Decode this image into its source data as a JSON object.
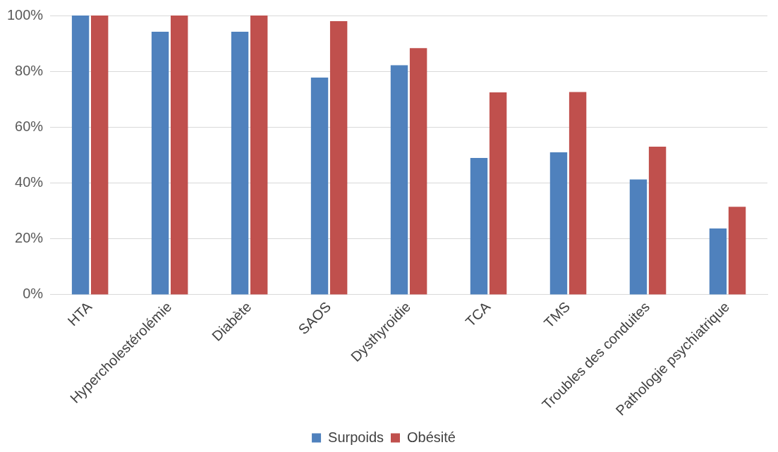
{
  "chart_data": {
    "type": "bar",
    "categories": [
      "HTA",
      "Hypercholestérolémie",
      "Diabète",
      "SAOS",
      "Dysthyroidie",
      "TCA",
      "TMS",
      "Troubles des conduites",
      "Pathologie psychiatrique"
    ],
    "series": [
      {
        "name": "Surpoids",
        "color": "#4f81bd",
        "values": [
          100,
          94.2,
          94.2,
          77.8,
          82.2,
          49,
          51,
          41.3,
          23.7
        ]
      },
      {
        "name": "Obésité",
        "color": "#c0504d",
        "values": [
          100,
          100,
          100,
          98,
          88.3,
          72.5,
          72.6,
          53,
          31.5
        ]
      }
    ],
    "ylim": [
      0,
      100
    ],
    "yticks": [
      {
        "value": 0,
        "label": "0%"
      },
      {
        "value": 20,
        "label": "20%"
      },
      {
        "value": 40,
        "label": "40%"
      },
      {
        "value": 60,
        "label": "60%"
      },
      {
        "value": 80,
        "label": "80%"
      },
      {
        "value": 100,
        "label": "100%"
      }
    ],
    "grid": "y",
    "legend": "bottom"
  }
}
